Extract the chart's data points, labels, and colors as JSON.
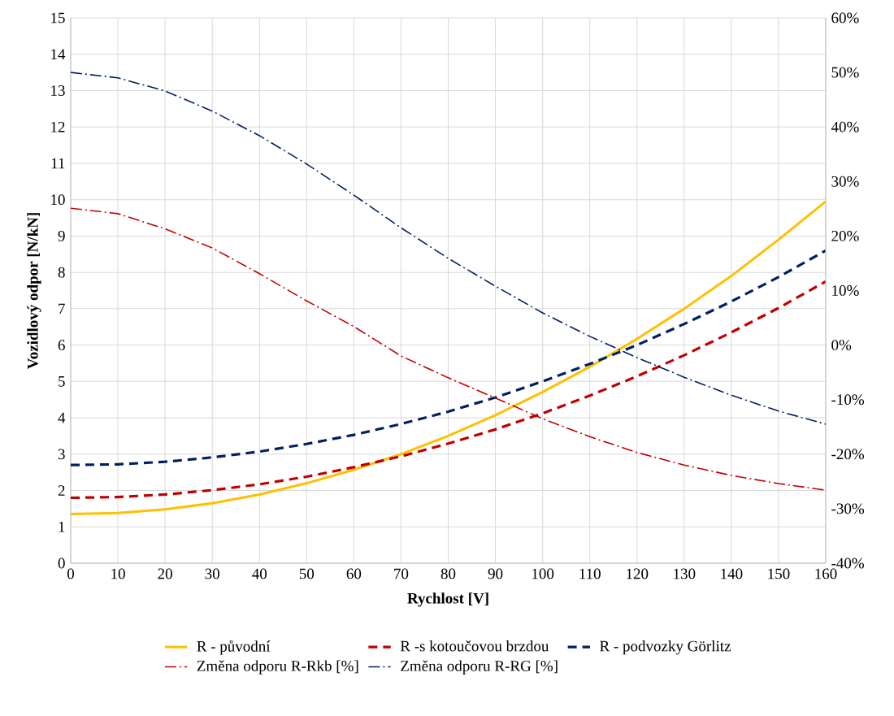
{
  "chart_data": {
    "type": "line",
    "xlabel": "Rychlost [V]",
    "ylabel": "Vozidlový odpor [N/kN]",
    "x": [
      0,
      10,
      20,
      30,
      40,
      50,
      60,
      70,
      80,
      90,
      100,
      110,
      120,
      130,
      140,
      150,
      160
    ],
    "xlim": [
      0,
      160
    ],
    "xticks": [
      0,
      10,
      20,
      30,
      40,
      50,
      60,
      70,
      80,
      90,
      100,
      110,
      120,
      130,
      140,
      150,
      160
    ],
    "ylim": [
      0,
      15
    ],
    "yticks": [
      0,
      1,
      2,
      3,
      4,
      5,
      6,
      7,
      8,
      9,
      10,
      11,
      12,
      13,
      14,
      15
    ],
    "y2lim": [
      -40,
      60
    ],
    "y2ticks": [
      {
        "value": -40,
        "label": "-40%"
      },
      {
        "value": -30,
        "label": "-30%"
      },
      {
        "value": -20,
        "label": "-20%"
      },
      {
        "value": -10,
        "label": "-10%"
      },
      {
        "value": 0,
        "label": "0%"
      },
      {
        "value": 10,
        "label": "10%"
      },
      {
        "value": 20,
        "label": "20%"
      },
      {
        "value": 30,
        "label": "30%"
      },
      {
        "value": 40,
        "label": "40%"
      },
      {
        "value": 50,
        "label": "50%"
      },
      {
        "value": 60,
        "label": "60%"
      }
    ],
    "grid": true,
    "legend": "bottom",
    "marker": "none",
    "series": [
      {
        "name": "R - původní",
        "color": "#ffc000",
        "line_style": "solid",
        "values": [
          1.35,
          1.38,
          1.48,
          1.65,
          1.89,
          2.2,
          2.57,
          3.0,
          3.5,
          4.07,
          4.71,
          5.4,
          6.17,
          7.0,
          7.9,
          8.9,
          9.95
        ]
      },
      {
        "name": "R -s kotoučovou brzdou",
        "color": "#c00000",
        "line_style": "dashed",
        "values": [
          1.8,
          1.82,
          1.89,
          2.01,
          2.17,
          2.38,
          2.64,
          2.94,
          3.29,
          3.68,
          4.12,
          4.61,
          5.14,
          5.72,
          6.35,
          7.02,
          7.75
        ]
      },
      {
        "name": "R - podvozky Görlitz",
        "color": "#002060",
        "line_style": "dashed",
        "values": [
          2.7,
          2.72,
          2.79,
          2.91,
          3.07,
          3.28,
          3.53,
          3.83,
          4.17,
          4.56,
          5.0,
          5.48,
          6.0,
          6.58,
          7.2,
          7.87,
          8.6
        ]
      },
      {
        "name": "Změna odporu R-Rkb [%]",
        "color": "#c00000",
        "line_style": "dashdot",
        "axis": "y2",
        "values": [
          25.1,
          24.1,
          21.3,
          17.8,
          13.1,
          8.1,
          3.4,
          -2.0,
          -6.0,
          -9.7,
          -13.5,
          -16.8,
          -19.7,
          -22.0,
          -23.9,
          -25.4,
          -26.6
        ]
      },
      {
        "name": "Změna odporu R-RG [%]",
        "color": "#002060",
        "line_style": "dashdot",
        "axis": "y2",
        "values": [
          50.0,
          49.0,
          46.6,
          42.9,
          38.4,
          33.2,
          27.5,
          21.5,
          15.9,
          10.8,
          5.9,
          1.6,
          -2.3,
          -5.9,
          -9.2,
          -12.1,
          -14.5
        ]
      }
    ]
  }
}
